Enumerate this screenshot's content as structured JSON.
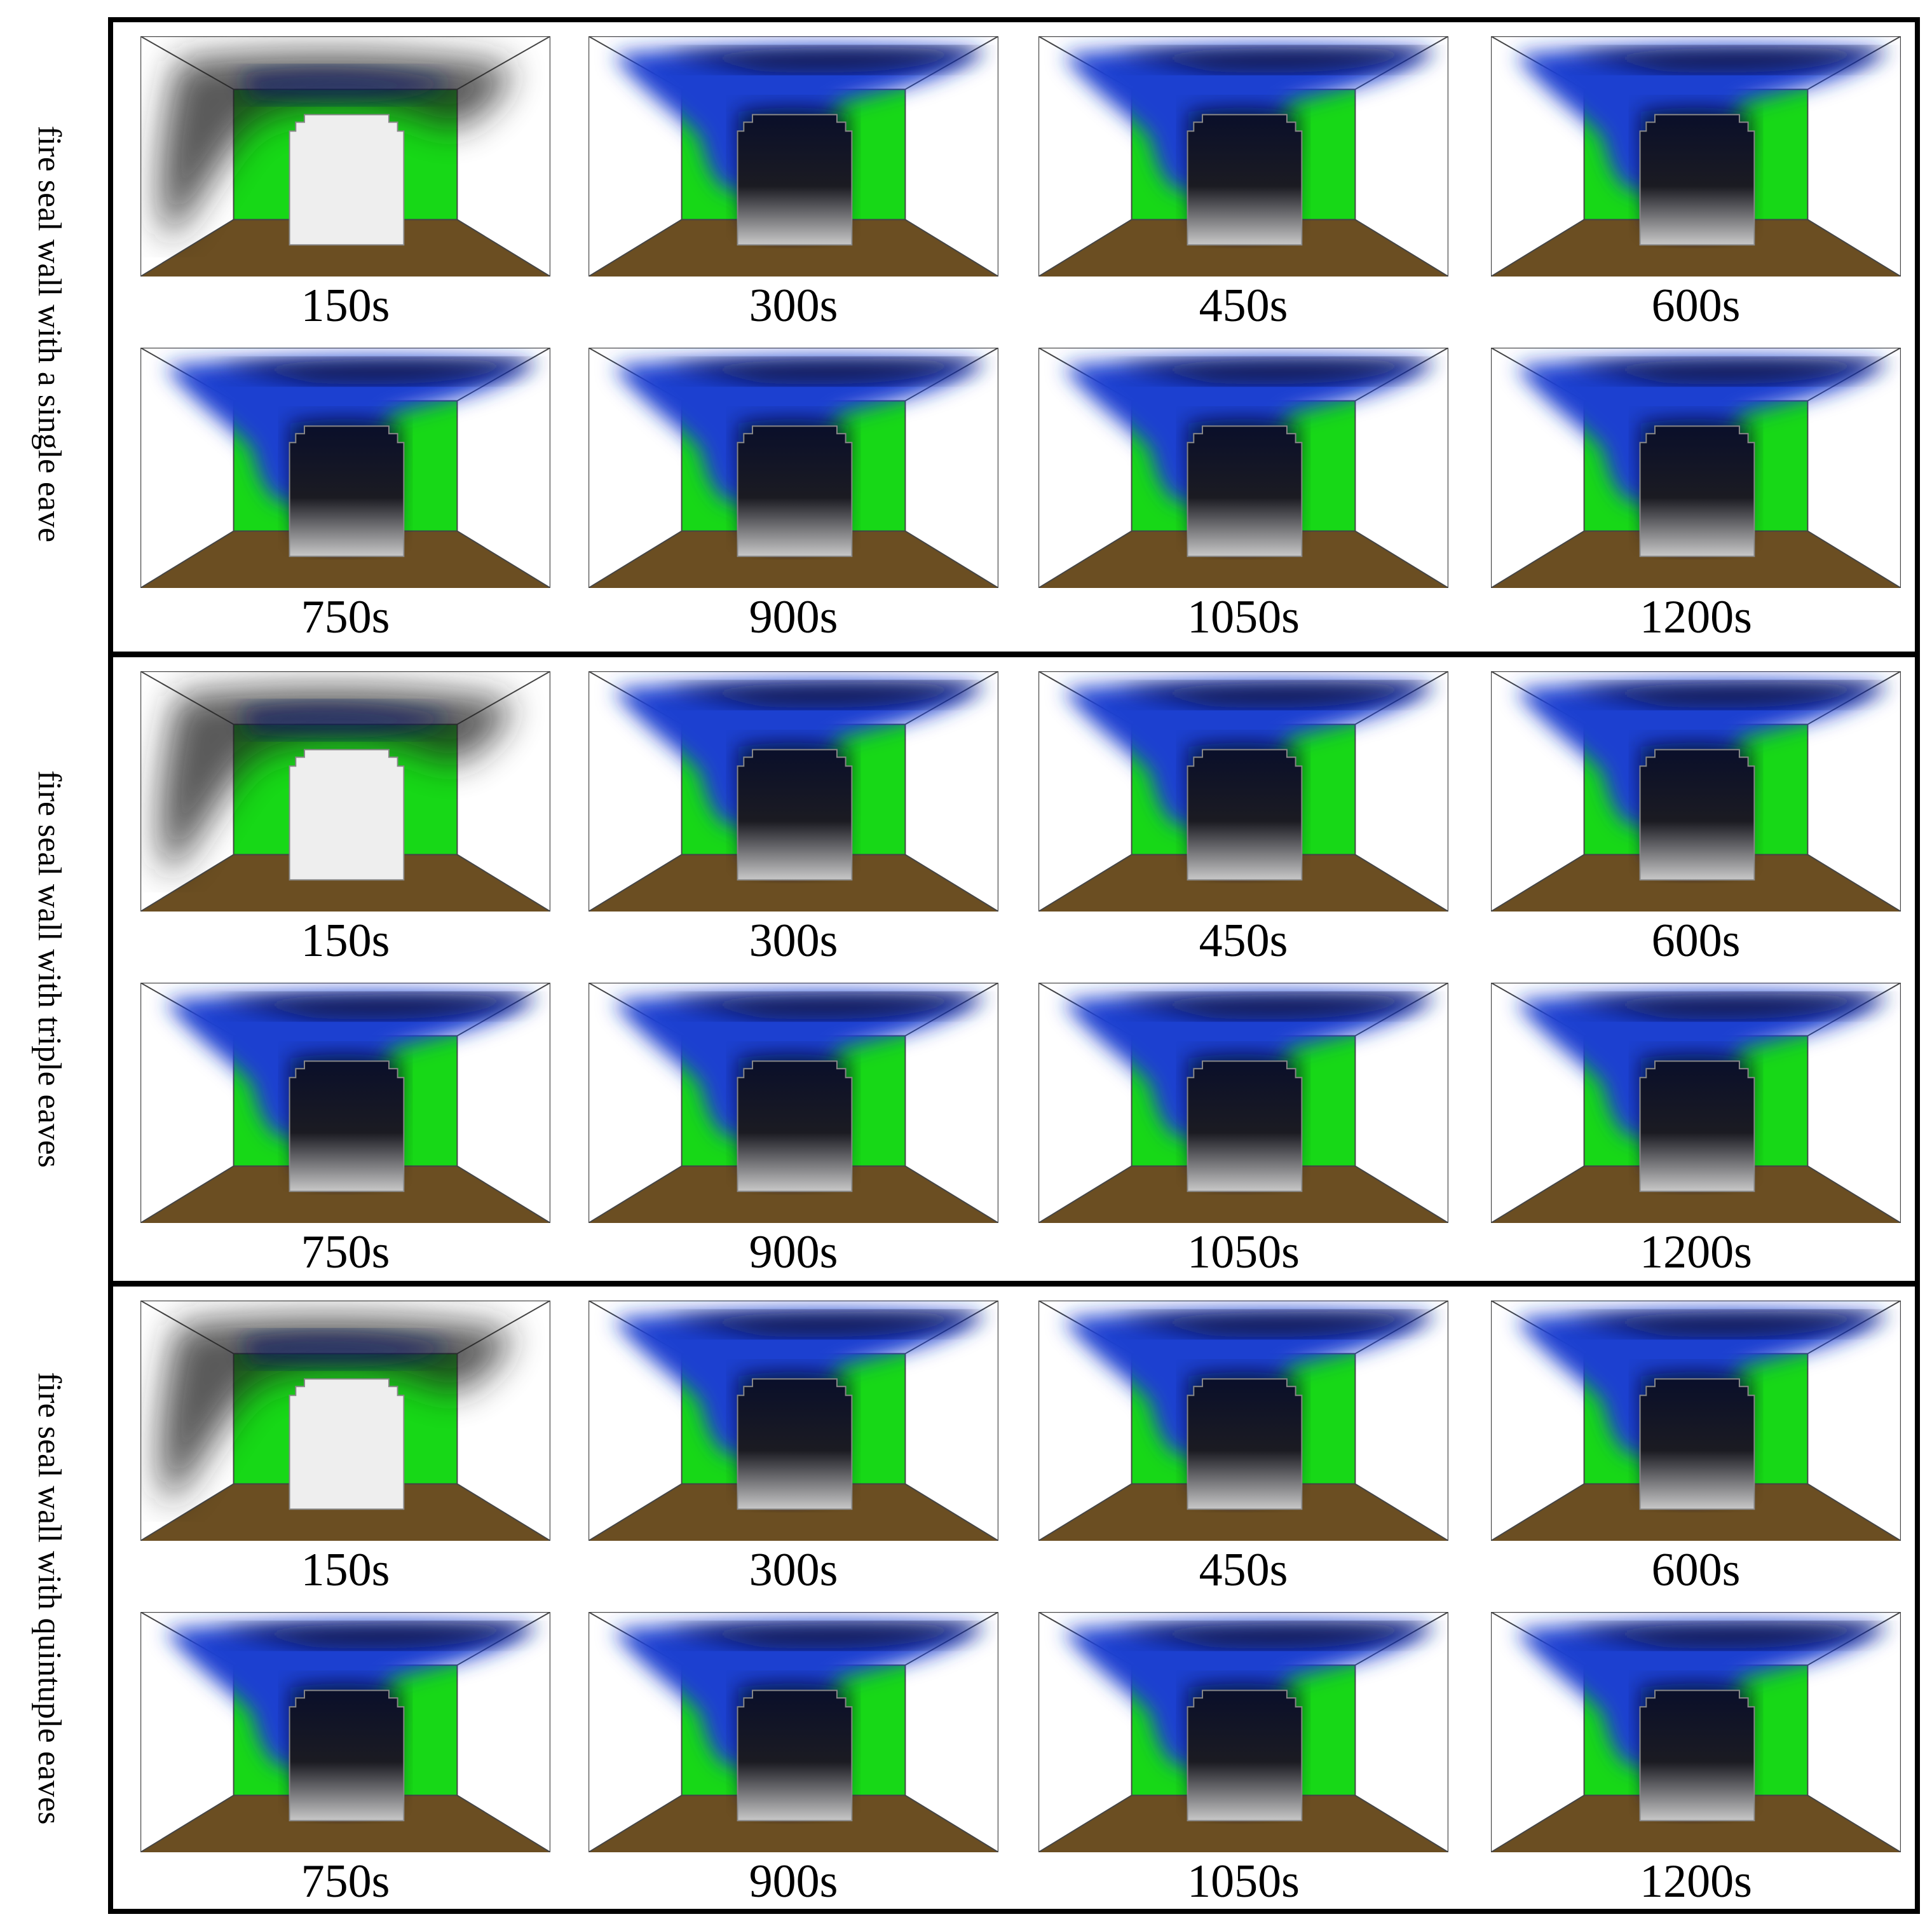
{
  "groups": [
    {
      "label": "fire seal wall with a single eave",
      "panels": [
        "150s",
        "300s",
        "450s",
        "600s",
        "750s",
        "900s",
        "1050s",
        "1200s"
      ]
    },
    {
      "label": "fire seal wall with triple eaves",
      "panels": [
        "150s",
        "300s",
        "450s",
        "600s",
        "750s",
        "900s",
        "1050s",
        "1200s"
      ]
    },
    {
      "label": "fire seal wall with quintuple eaves",
      "panels": [
        "150s",
        "300s",
        "450s",
        "600s",
        "750s",
        "900s",
        "1050s",
        "1200s"
      ]
    }
  ]
}
